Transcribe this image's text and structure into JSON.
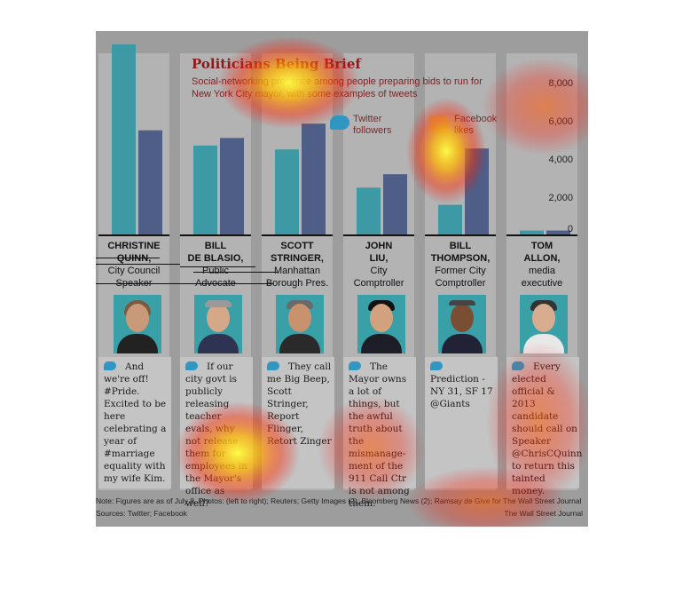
{
  "header": {
    "title": "Politicians Being Brief",
    "subtitle": "Social-networking presence among people preparing bids to run for New York City mayor, with some examples of tweets"
  },
  "legend": {
    "twitter": "Twitter followers",
    "facebook": "Facebook likes"
  },
  "chart_data": {
    "type": "bar",
    "categories": [
      "Christine Quinn",
      "Bill de Blasio",
      "Scott Stringer",
      "John Liu",
      "Bill Thompson",
      "Tom Allon"
    ],
    "series": [
      {
        "name": "Twitter followers",
        "values": [
          10000,
          4700,
          4500,
          2500,
          1600,
          250
        ]
      },
      {
        "name": "Facebook likes",
        "values": [
          5500,
          5100,
          5850,
          3200,
          4550,
          250
        ]
      }
    ],
    "ylim": [
      0,
      10000
    ],
    "yticks": [
      "8,000",
      "6,000",
      "4,000",
      "2,000",
      "0"
    ],
    "ytick_values": [
      8000,
      6000,
      4000,
      2000,
      0
    ],
    "colors": {
      "twitter": "#3d99a3",
      "facebook": "#4f5e86"
    }
  },
  "politicians": [
    {
      "name1": "CHRISTINE",
      "name2": "QUINN,",
      "role1": "City Council",
      "role2": "Speaker",
      "tweet": "And we're off! #Pride. Excited to be here celebrating a year of #marriage equality with my wife Kim."
    },
    {
      "name1": "BILL",
      "name2": "DE BLASIO,",
      "role1": "Public",
      "role2": "Advocate",
      "tweet": "If our city govt is publicly releasing teacher evals, why not release them for employees in the Mayor's office as well?"
    },
    {
      "name1": "SCOTT",
      "name2": "STRINGER,",
      "role1": "Manhattan",
      "role2": "Borough Pres.",
      "tweet": "They call me Big Beep, Scott Stringer, Report Flinger, Retort Zinger"
    },
    {
      "name1": "JOHN",
      "name2": "LIU,",
      "role1": "City",
      "role2": "Comptroller",
      "tweet": "The Mayor owns a lot of things, but the awful truth about the mismanage-ment of the 911 Call Ctr is not among them."
    },
    {
      "name1": "BILL",
      "name2": "THOMPSON,",
      "role1": "Former City",
      "role2": "Comptroller",
      "tweet": "Prediction - NY 31, SF 17 @Giants"
    },
    {
      "name1": "TOM",
      "name2": "ALLON,",
      "role1": "media",
      "role2": "executive",
      "tweet": "Every elected official & 2013 candidate should call on Speaker @ChrisCQuinn to return this tainted money."
    }
  ],
  "footer": {
    "note": "Note: Figures are as of July 8.  Photos: (left to right); Reuters; Getty Images (2); Bloomberg News (2); Ramsay de Give for The Wall Street Journal",
    "sources": "Sources: Twitter; Facebook",
    "credit": "The Wall Street Journal"
  }
}
